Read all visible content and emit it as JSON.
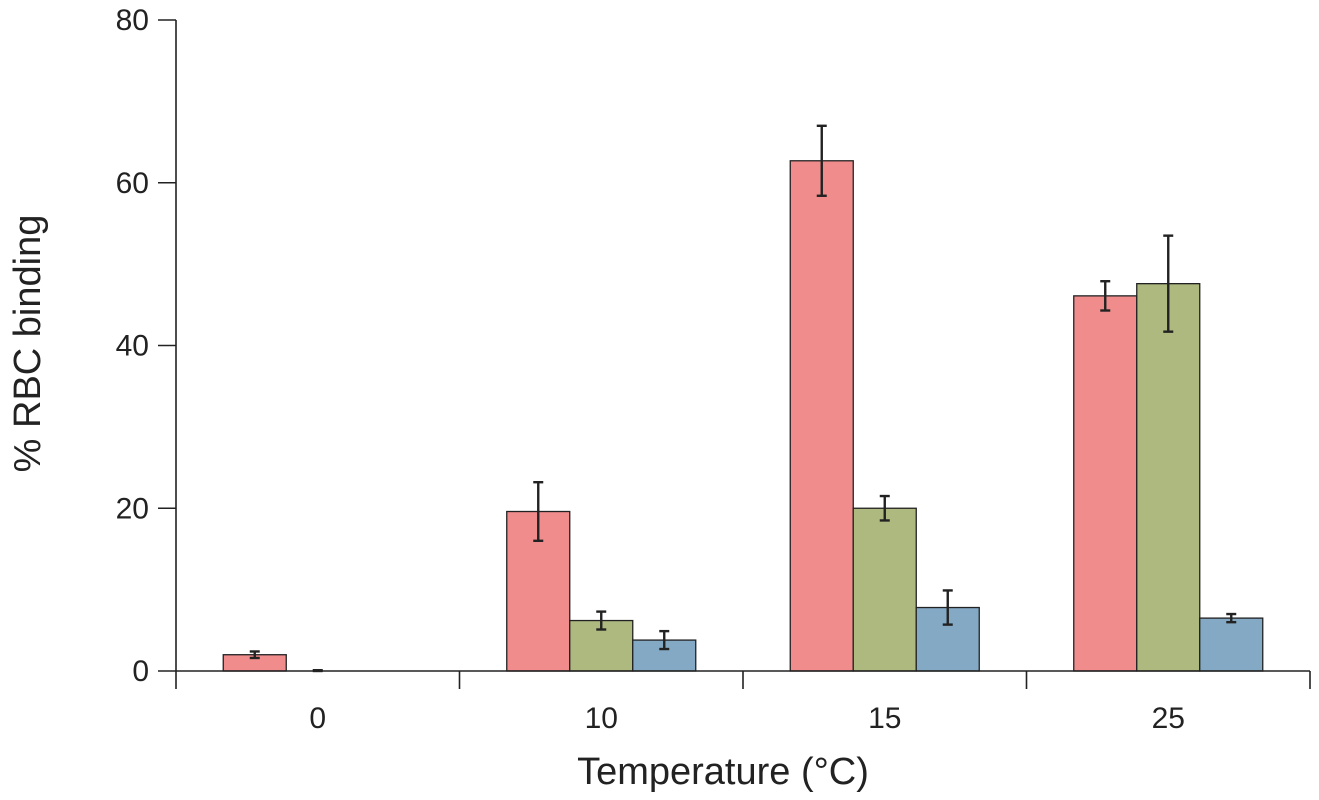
{
  "chart_data": {
    "type": "bar",
    "xlabel": "Temperature (°C)",
    "ylabel": "% RBC binding",
    "categories": [
      "0",
      "10",
      "15",
      "25"
    ],
    "ylim": [
      0,
      80
    ],
    "yticks": [
      "0",
      "20",
      "40",
      "60",
      "80"
    ],
    "grid": false,
    "series": [
      {
        "color": "#f08c8c",
        "values": [
          2.0,
          19.6,
          62.7,
          46.1
        ],
        "errors": [
          0.4,
          3.6,
          4.3,
          1.8
        ]
      },
      {
        "color": "#adb97e",
        "values": [
          0.0,
          6.2,
          20.0,
          47.6
        ],
        "errors": [
          0.1,
          1.1,
          1.5,
          5.9
        ]
      },
      {
        "color": "#84a9c4",
        "values": [
          0.0,
          3.8,
          7.8,
          6.5
        ],
        "errors": [
          0.0,
          1.1,
          2.1,
          0.5
        ]
      }
    ]
  }
}
